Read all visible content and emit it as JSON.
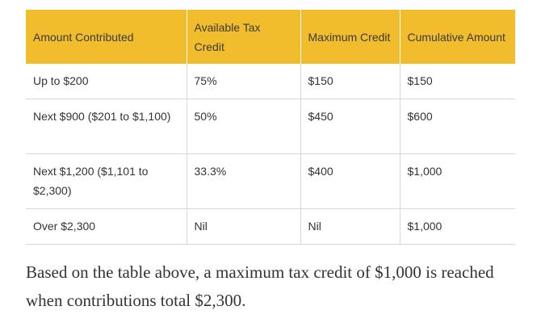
{
  "table": {
    "headers": [
      "Amount Contributed",
      "Available Tax Credit",
      "Maximum Credit",
      "Cumulative Amount"
    ],
    "rows": [
      [
        "Up to $200",
        "75%",
        "$150",
        "$150"
      ],
      [
        "Next $900 ($201 to $1,100)",
        "50%",
        "$450",
        "$600"
      ],
      [
        "Next $1,200 ($1,101 to $2,300)",
        "33.3%",
        "$400",
        "$1,000"
      ],
      [
        "Over $2,300",
        "Nil",
        "Nil",
        "$1,000"
      ]
    ],
    "header_color": "#f2bd2c",
    "border_color": "#d8d8d8"
  },
  "summary_text": "Based on the table above, a maximum tax credit of $1,000 is reached when contributions total $2,300."
}
